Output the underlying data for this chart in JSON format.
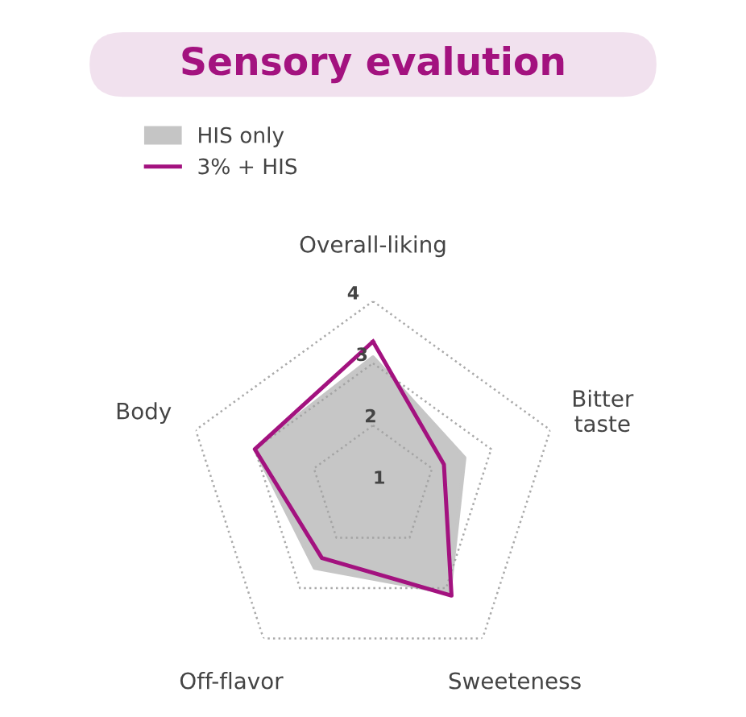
{
  "chart_data": {
    "type": "radar",
    "title": "Sensory evalution",
    "categories": [
      "Overall-liking",
      "Bitter\ntaste",
      "Sweeteness",
      "Off-flavor",
      "Body"
    ],
    "series": [
      {
        "name": "HIS only",
        "color": "#a0a0a0",
        "values": [
          3.1,
          2.55,
          3.1,
          2.6,
          3.0
        ]
      },
      {
        "name": "3% + HIS",
        "color": "#a3127f",
        "values": [
          3.35,
          2.2,
          3.15,
          2.4,
          3.0
        ]
      }
    ],
    "ylim": [
      1,
      4
    ],
    "yticks": [
      1,
      2,
      3,
      4
    ],
    "grid": true,
    "legend": "top left"
  }
}
